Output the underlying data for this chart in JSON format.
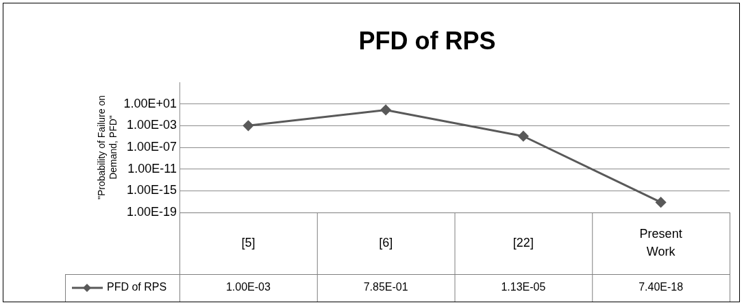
{
  "chart_data": {
    "type": "line",
    "title": "PFD of RPS",
    "ylabel": "\"Probability of Failure on Demand, PFD\"",
    "categories": [
      "[5]",
      "[6]",
      "[22]",
      "Present Work"
    ],
    "series": [
      {
        "name": "PFD of RPS",
        "color": "#595959",
        "values": [
          0.001,
          0.785,
          1.13e-05,
          7.4e-18
        ],
        "value_labels": [
          "1.00E-03",
          "7.85E-01",
          "1.13E-05",
          "7.40E-18"
        ]
      }
    ],
    "log": "y",
    "ylim": [
      1e-19,
      100000.0
    ],
    "yticks": [
      {
        "value": 1e-19,
        "label": "1.00E-19"
      },
      {
        "value": 1e-15,
        "label": "1.00E-15"
      },
      {
        "value": 1e-11,
        "label": "1.00E-11"
      },
      {
        "value": 1e-07,
        "label": "1.00E-07"
      },
      {
        "value": 0.001,
        "label": "1.00E-03"
      },
      {
        "value": 10,
        "label": "1.00E+01"
      }
    ],
    "grid": "y",
    "legend": "bottom",
    "marker": "diamond",
    "line_style": "solid"
  }
}
